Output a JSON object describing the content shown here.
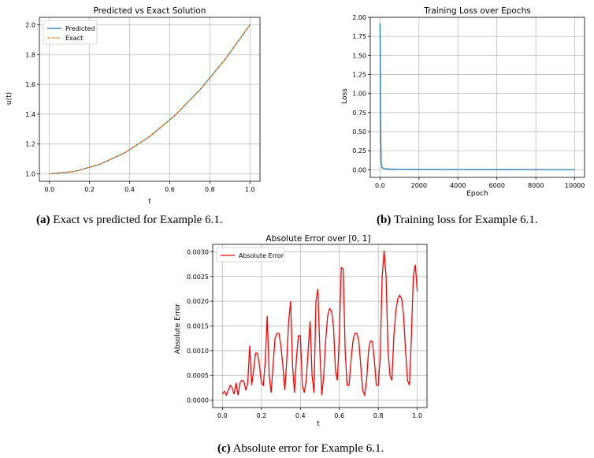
{
  "chart_data": [
    {
      "type": "line",
      "title": "Predicted vs Exact Solution",
      "xlabel": "t",
      "ylabel": "u(t)",
      "xlim": [
        -0.05,
        1.05
      ],
      "ylim": [
        0.95,
        2.05
      ],
      "xticks": [
        0.0,
        0.2,
        0.4,
        0.6,
        0.8,
        1.0
      ],
      "yticks": [
        1.0,
        1.2,
        1.4,
        1.6,
        1.8,
        2.0
      ],
      "grid": true,
      "legend": "top-left",
      "series": [
        {
          "name": "Predicted",
          "color": "#1f77b4",
          "style": "solid",
          "x": [
            0.0,
            0.125,
            0.25,
            0.375,
            0.5,
            0.625,
            0.75,
            0.875,
            1.0
          ],
          "y": [
            1.0,
            1.016,
            1.063,
            1.141,
            1.25,
            1.391,
            1.563,
            1.766,
            2.0
          ]
        },
        {
          "name": "Exact",
          "color": "#ff7f0e",
          "style": "dashed",
          "x": [
            0.0,
            0.125,
            0.25,
            0.375,
            0.5,
            0.625,
            0.75,
            0.875,
            1.0
          ],
          "y": [
            1.0,
            1.016,
            1.063,
            1.141,
            1.25,
            1.391,
            1.563,
            1.766,
            2.0
          ]
        }
      ],
      "caption_label": "(a)",
      "caption_text": "Exact vs predicted for Example 6.1."
    },
    {
      "type": "line",
      "title": "Training Loss over Epochs",
      "xlabel": "Epoch",
      "ylabel": "Loss",
      "xlim": [
        -500,
        10500
      ],
      "ylim": [
        -0.1,
        2.0
      ],
      "xticks": [
        0,
        2000,
        4000,
        6000,
        8000,
        10000
      ],
      "yticks": [
        0.0,
        0.25,
        0.5,
        0.75,
        1.0,
        1.25,
        1.5,
        1.75,
        2.0
      ],
      "ytick_format": "2dp",
      "grid": true,
      "series": [
        {
          "color": "#1f77b4",
          "style": "solid",
          "x": [
            0,
            10,
            30,
            60,
            100,
            200,
            500,
            1000,
            2000,
            4000,
            6000,
            8000,
            10000
          ],
          "y": [
            1.92,
            1.6,
            0.6,
            0.1,
            0.03,
            0.015,
            0.008,
            0.005,
            0.003,
            0.002,
            0.0015,
            0.001,
            0.001
          ]
        }
      ],
      "caption_label": "(b)",
      "caption_text": "Training loss for Example 6.1."
    },
    {
      "type": "line",
      "title": "Absolute Error over [0, 1]",
      "xlabel": "t",
      "ylabel": "Absolute Error",
      "xlim": [
        -0.05,
        1.05
      ],
      "ylim": [
        -0.00015,
        0.00315
      ],
      "xticks": [
        0.0,
        0.2,
        0.4,
        0.6,
        0.8,
        1.0
      ],
      "yticks": [
        0.0,
        0.0005,
        0.001,
        0.0015,
        0.002,
        0.0025,
        0.003
      ],
      "ytick_format": "4dp",
      "grid": true,
      "legend": "top-left",
      "series": [
        {
          "name": "Absolute Error",
          "color": "#ff0000",
          "style": "solid",
          "x": [
            0.0,
            0.01,
            0.02,
            0.03,
            0.04,
            0.05,
            0.06,
            0.07,
            0.08,
            0.09,
            0.1,
            0.11,
            0.12,
            0.13,
            0.14,
            0.15,
            0.16,
            0.17,
            0.18,
            0.19,
            0.2,
            0.21,
            0.22,
            0.23,
            0.24,
            0.25,
            0.26,
            0.27,
            0.28,
            0.29,
            0.3,
            0.31,
            0.32,
            0.33,
            0.34,
            0.35,
            0.36,
            0.37,
            0.38,
            0.39,
            0.4,
            0.41,
            0.42,
            0.43,
            0.44,
            0.45,
            0.46,
            0.47,
            0.48,
            0.49,
            0.5,
            0.51,
            0.52,
            0.53,
            0.54,
            0.55,
            0.56,
            0.57,
            0.58,
            0.59,
            0.6,
            0.61,
            0.62,
            0.63,
            0.64,
            0.65,
            0.66,
            0.67,
            0.68,
            0.69,
            0.7,
            0.71,
            0.72,
            0.73,
            0.74,
            0.75,
            0.76,
            0.77,
            0.78,
            0.79,
            0.8,
            0.81,
            0.82,
            0.83,
            0.84,
            0.85,
            0.86,
            0.87,
            0.88,
            0.89,
            0.9,
            0.91,
            0.92,
            0.93,
            0.94,
            0.95,
            0.96,
            0.97,
            0.98,
            0.99,
            1.0
          ],
          "y": [
            0.00012,
            0.00018,
            0.0001,
            0.0002,
            0.0003,
            0.00025,
            0.00012,
            0.00035,
            0.0001,
            0.00035,
            0.0004,
            0.00038,
            0.0002,
            0.00035,
            0.0011,
            0.0003,
            0.0006,
            0.00095,
            0.00095,
            0.0007,
            0.00035,
            0.0003,
            0.0008,
            0.0017,
            0.0005,
            0.00015,
            0.0007,
            0.00125,
            0.00135,
            0.00135,
            0.0011,
            0.0007,
            0.0002,
            0.0008,
            0.0016,
            0.002,
            0.0007,
            0.00015,
            0.00085,
            0.0013,
            0.0013,
            0.0003,
            0.00015,
            0.0004,
            0.001,
            0.0016,
            0.0005,
            0.00015,
            0.002,
            0.00225,
            0.001,
            0.0001,
            0.0005,
            0.0012,
            0.0017,
            0.00185,
            0.0018,
            0.0015,
            0.0006,
            0.0004,
            0.0013,
            0.00268,
            0.00265,
            0.001,
            0.0003,
            0.0003,
            0.0008,
            0.0012,
            0.00135,
            0.00135,
            0.0012,
            0.0007,
            0.0002,
            0.0001,
            0.0004,
            0.001,
            0.0012,
            0.00118,
            0.0008,
            0.0003,
            0.0003,
            0.0009,
            0.0025,
            0.00302,
            0.0025,
            0.001,
            0.0005,
            0.0004,
            0.0013,
            0.0018,
            0.00205,
            0.00212,
            0.00205,
            0.0017,
            0.001,
            0.0004,
            0.0003,
            0.0013,
            0.0025,
            0.00274,
            0.0022
          ],
          "x_trimmed": true
        }
      ],
      "caption_label": "(c)",
      "caption_text": "Absolute error for Example 6.1."
    }
  ]
}
